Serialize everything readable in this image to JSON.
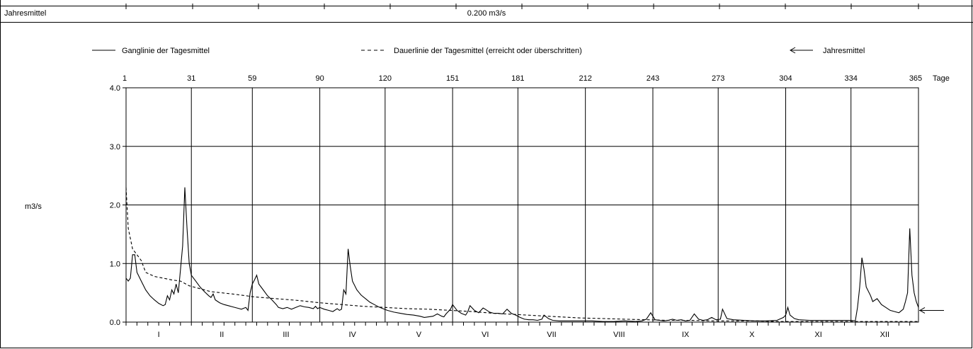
{
  "header": {
    "mean_label": "Jahresmittel",
    "mean_value": "0.200 m3/s"
  },
  "legend": {
    "hydrograph": "Ganglinie der Tagesmittel",
    "duration": "Dauerlinie der Tagesmittel (erreicht oder überschritten)",
    "mean": "Jahresmittel"
  },
  "chart_data": {
    "type": "line",
    "ylabel": "m3/s",
    "xlabel": "Tage",
    "ylim": [
      0,
      4.0
    ],
    "xlim": [
      1,
      365
    ],
    "y_ticks": [
      "0.0",
      "1.0",
      "2.0",
      "3.0",
      "4.0"
    ],
    "x_ticks": [
      1,
      31,
      59,
      90,
      120,
      151,
      181,
      212,
      243,
      273,
      304,
      334,
      365
    ],
    "months": [
      "I",
      "II",
      "III",
      "IV",
      "V",
      "VI",
      "VII",
      "VIII",
      "IX",
      "X",
      "XI",
      "XII"
    ],
    "annual_mean": 0.2,
    "series": [
      {
        "name": "Ganglinie der Tagesmittel",
        "style": "solid",
        "points": [
          [
            1,
            0.75
          ],
          [
            2,
            0.7
          ],
          [
            3,
            0.75
          ],
          [
            4,
            1.15
          ],
          [
            5,
            1.15
          ],
          [
            6,
            0.85
          ],
          [
            8,
            0.7
          ],
          [
            10,
            0.55
          ],
          [
            12,
            0.45
          ],
          [
            14,
            0.38
          ],
          [
            16,
            0.32
          ],
          [
            18,
            0.28
          ],
          [
            19,
            0.3
          ],
          [
            20,
            0.45
          ],
          [
            21,
            0.38
          ],
          [
            22,
            0.55
          ],
          [
            23,
            0.48
          ],
          [
            24,
            0.65
          ],
          [
            25,
            0.5
          ],
          [
            26,
            0.9
          ],
          [
            27,
            1.3
          ],
          [
            28,
            2.3
          ],
          [
            29,
            1.6
          ],
          [
            30,
            1.0
          ],
          [
            31,
            0.8
          ],
          [
            33,
            0.7
          ],
          [
            35,
            0.6
          ],
          [
            37,
            0.52
          ],
          [
            39,
            0.45
          ],
          [
            40,
            0.42
          ],
          [
            41,
            0.48
          ],
          [
            42,
            0.38
          ],
          [
            44,
            0.33
          ],
          [
            46,
            0.3
          ],
          [
            48,
            0.28
          ],
          [
            50,
            0.26
          ],
          [
            52,
            0.24
          ],
          [
            54,
            0.22
          ],
          [
            56,
            0.25
          ],
          [
            57,
            0.2
          ],
          [
            58,
            0.5
          ],
          [
            59,
            0.65
          ],
          [
            60,
            0.72
          ],
          [
            61,
            0.8
          ],
          [
            62,
            0.65
          ],
          [
            64,
            0.55
          ],
          [
            66,
            0.45
          ],
          [
            68,
            0.38
          ],
          [
            70,
            0.3
          ],
          [
            71,
            0.25
          ],
          [
            73,
            0.23
          ],
          [
            75,
            0.25
          ],
          [
            77,
            0.22
          ],
          [
            79,
            0.25
          ],
          [
            81,
            0.28
          ],
          [
            83,
            0.26
          ],
          [
            85,
            0.25
          ],
          [
            87,
            0.23
          ],
          [
            88,
            0.27
          ],
          [
            89,
            0.23
          ],
          [
            90,
            0.25
          ],
          [
            92,
            0.22
          ],
          [
            94,
            0.2
          ],
          [
            96,
            0.18
          ],
          [
            98,
            0.23
          ],
          [
            99,
            0.2
          ],
          [
            100,
            0.22
          ],
          [
            101,
            0.55
          ],
          [
            102,
            0.48
          ],
          [
            103,
            1.25
          ],
          [
            104,
            0.95
          ],
          [
            105,
            0.7
          ],
          [
            107,
            0.55
          ],
          [
            109,
            0.46
          ],
          [
            111,
            0.4
          ],
          [
            113,
            0.34
          ],
          [
            115,
            0.3
          ],
          [
            117,
            0.26
          ],
          [
            119,
            0.23
          ],
          [
            121,
            0.2
          ],
          [
            124,
            0.17
          ],
          [
            127,
            0.15
          ],
          [
            130,
            0.13
          ],
          [
            133,
            0.12
          ],
          [
            136,
            0.1
          ],
          [
            138,
            0.08
          ],
          [
            140,
            0.09
          ],
          [
            142,
            0.1
          ],
          [
            144,
            0.14
          ],
          [
            146,
            0.1
          ],
          [
            147,
            0.09
          ],
          [
            148,
            0.14
          ],
          [
            150,
            0.22
          ],
          [
            151,
            0.3
          ],
          [
            153,
            0.2
          ],
          [
            155,
            0.15
          ],
          [
            157,
            0.12
          ],
          [
            158,
            0.18
          ],
          [
            159,
            0.28
          ],
          [
            161,
            0.2
          ],
          [
            163,
            0.16
          ],
          [
            164,
            0.2
          ],
          [
            165,
            0.24
          ],
          [
            166,
            0.22
          ],
          [
            168,
            0.17
          ],
          [
            170,
            0.15
          ],
          [
            172,
            0.15
          ],
          [
            174,
            0.14
          ],
          [
            176,
            0.22
          ],
          [
            178,
            0.15
          ],
          [
            180,
            0.12
          ],
          [
            182,
            0.08
          ],
          [
            184,
            0.05
          ],
          [
            186,
            0.04
          ],
          [
            188,
            0.04
          ],
          [
            190,
            0.03
          ],
          [
            192,
            0.05
          ],
          [
            193,
            0.12
          ],
          [
            195,
            0.06
          ],
          [
            197,
            0.03
          ],
          [
            200,
            0.02
          ],
          [
            205,
            0.02
          ],
          [
            210,
            0.02
          ],
          [
            215,
            0.02
          ],
          [
            220,
            0.01
          ],
          [
            225,
            0.01
          ],
          [
            230,
            0.02
          ],
          [
            235,
            0.01
          ],
          [
            238,
            0.02
          ],
          [
            240,
            0.05
          ],
          [
            242,
            0.16
          ],
          [
            244,
            0.04
          ],
          [
            246,
            0.03
          ],
          [
            248,
            0.02
          ],
          [
            250,
            0.03
          ],
          [
            252,
            0.05
          ],
          [
            254,
            0.03
          ],
          [
            256,
            0.04
          ],
          [
            258,
            0.02
          ],
          [
            260,
            0.03
          ],
          [
            262,
            0.14
          ],
          [
            264,
            0.05
          ],
          [
            266,
            0.03
          ],
          [
            268,
            0.04
          ],
          [
            270,
            0.08
          ],
          [
            272,
            0.04
          ],
          [
            274,
            0.05
          ],
          [
            275,
            0.22
          ],
          [
            277,
            0.06
          ],
          [
            280,
            0.04
          ],
          [
            285,
            0.03
          ],
          [
            290,
            0.02
          ],
          [
            295,
            0.02
          ],
          [
            300,
            0.03
          ],
          [
            303,
            0.08
          ],
          [
            304,
            0.12
          ],
          [
            305,
            0.25
          ],
          [
            306,
            0.12
          ],
          [
            308,
            0.06
          ],
          [
            310,
            0.04
          ],
          [
            315,
            0.03
          ],
          [
            320,
            0.03
          ],
          [
            325,
            0.03
          ],
          [
            330,
            0.03
          ],
          [
            334,
            0.03
          ],
          [
            336,
            0.02
          ],
          [
            337,
            0.25
          ],
          [
            338,
            0.6
          ],
          [
            339,
            1.1
          ],
          [
            340,
            0.9
          ],
          [
            341,
            0.6
          ],
          [
            343,
            0.45
          ],
          [
            344,
            0.35
          ],
          [
            346,
            0.4
          ],
          [
            348,
            0.3
          ],
          [
            350,
            0.25
          ],
          [
            352,
            0.2
          ],
          [
            354,
            0.18
          ],
          [
            356,
            0.16
          ],
          [
            358,
            0.22
          ],
          [
            359,
            0.35
          ],
          [
            360,
            0.5
          ],
          [
            361,
            1.6
          ],
          [
            362,
            0.8
          ],
          [
            363,
            0.5
          ],
          [
            364,
            0.35
          ],
          [
            365,
            0.25
          ]
        ]
      },
      {
        "name": "Dauerlinie der Tagesmittel (erreicht oder überschritten)",
        "style": "dashed",
        "points": [
          [
            1,
            2.3
          ],
          [
            2,
            1.6
          ],
          [
            4,
            1.25
          ],
          [
            6,
            1.15
          ],
          [
            8,
            1.05
          ],
          [
            10,
            0.85
          ],
          [
            14,
            0.78
          ],
          [
            18,
            0.75
          ],
          [
            22,
            0.72
          ],
          [
            26,
            0.7
          ],
          [
            30,
            0.62
          ],
          [
            35,
            0.57
          ],
          [
            40,
            0.52
          ],
          [
            50,
            0.48
          ],
          [
            60,
            0.43
          ],
          [
            70,
            0.4
          ],
          [
            80,
            0.37
          ],
          [
            90,
            0.33
          ],
          [
            100,
            0.3
          ],
          [
            110,
            0.27
          ],
          [
            120,
            0.25
          ],
          [
            130,
            0.23
          ],
          [
            140,
            0.22
          ],
          [
            150,
            0.2
          ],
          [
            160,
            0.18
          ],
          [
            170,
            0.15
          ],
          [
            180,
            0.13
          ],
          [
            190,
            0.11
          ],
          [
            200,
            0.09
          ],
          [
            210,
            0.07
          ],
          [
            220,
            0.06
          ],
          [
            230,
            0.05
          ],
          [
            240,
            0.04
          ],
          [
            250,
            0.03
          ],
          [
            260,
            0.03
          ],
          [
            270,
            0.02
          ],
          [
            280,
            0.02
          ],
          [
            290,
            0.02
          ],
          [
            300,
            0.01
          ],
          [
            320,
            0.01
          ],
          [
            340,
            0.01
          ],
          [
            365,
            0.01
          ]
        ]
      }
    ]
  }
}
